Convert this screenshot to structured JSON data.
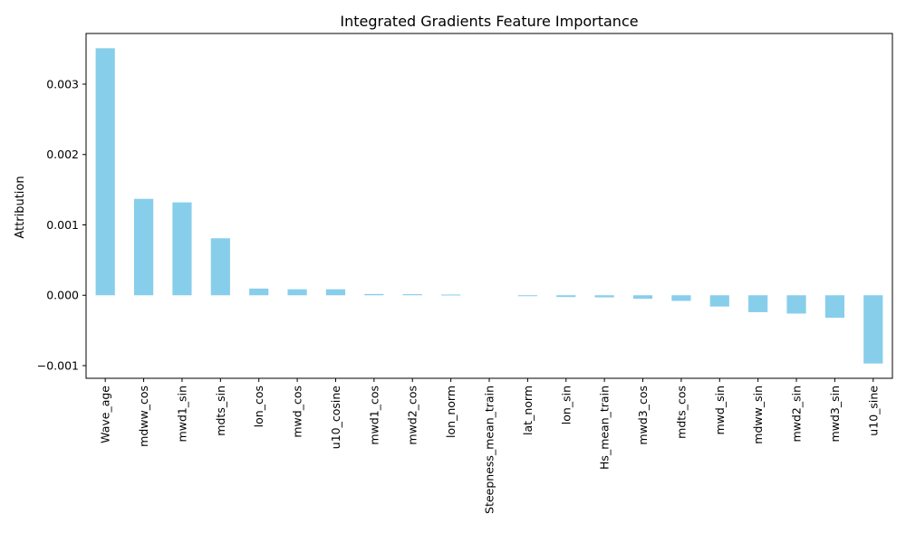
{
  "chart_data": {
    "type": "bar",
    "title": "Integrated Gradients Feature Importance",
    "xlabel": "",
    "ylabel": "Attribution",
    "bar_color": "#87CEEB",
    "grid": false,
    "ylim": [
      -0.00118,
      0.00372
    ],
    "yticks": [
      -0.001,
      0.0,
      0.001,
      0.002,
      0.003
    ],
    "ytick_labels": [
      "−0.001",
      "0.000",
      "0.001",
      "0.002",
      "0.003"
    ],
    "categories": [
      "Wave_age",
      "mdww_cos",
      "mwd1_sin",
      "mdts_sin",
      "lon_cos",
      "mwd_cos",
      "u10_cosine",
      "mwd1_cos",
      "mwd2_cos",
      "lon_norm",
      "Steepness_mean_train",
      "lat_norm",
      "lon_sin",
      "Hs_mean_train",
      "mwd3_cos",
      "mdts_cos",
      "mwd_sin",
      "mdww_sin",
      "mwd2_sin",
      "mwd3_sin",
      "u10_sine"
    ],
    "values": [
      0.00351,
      0.00137,
      0.00132,
      0.00081,
      9.5e-05,
      8.5e-05,
      8.5e-05,
      1.8e-05,
      1.5e-05,
      1e-05,
      0.0,
      -1.2e-05,
      -2.5e-05,
      -3e-05,
      -5e-05,
      -8e-05,
      -0.00016,
      -0.00024,
      -0.00026,
      -0.00032,
      -0.00097
    ]
  }
}
